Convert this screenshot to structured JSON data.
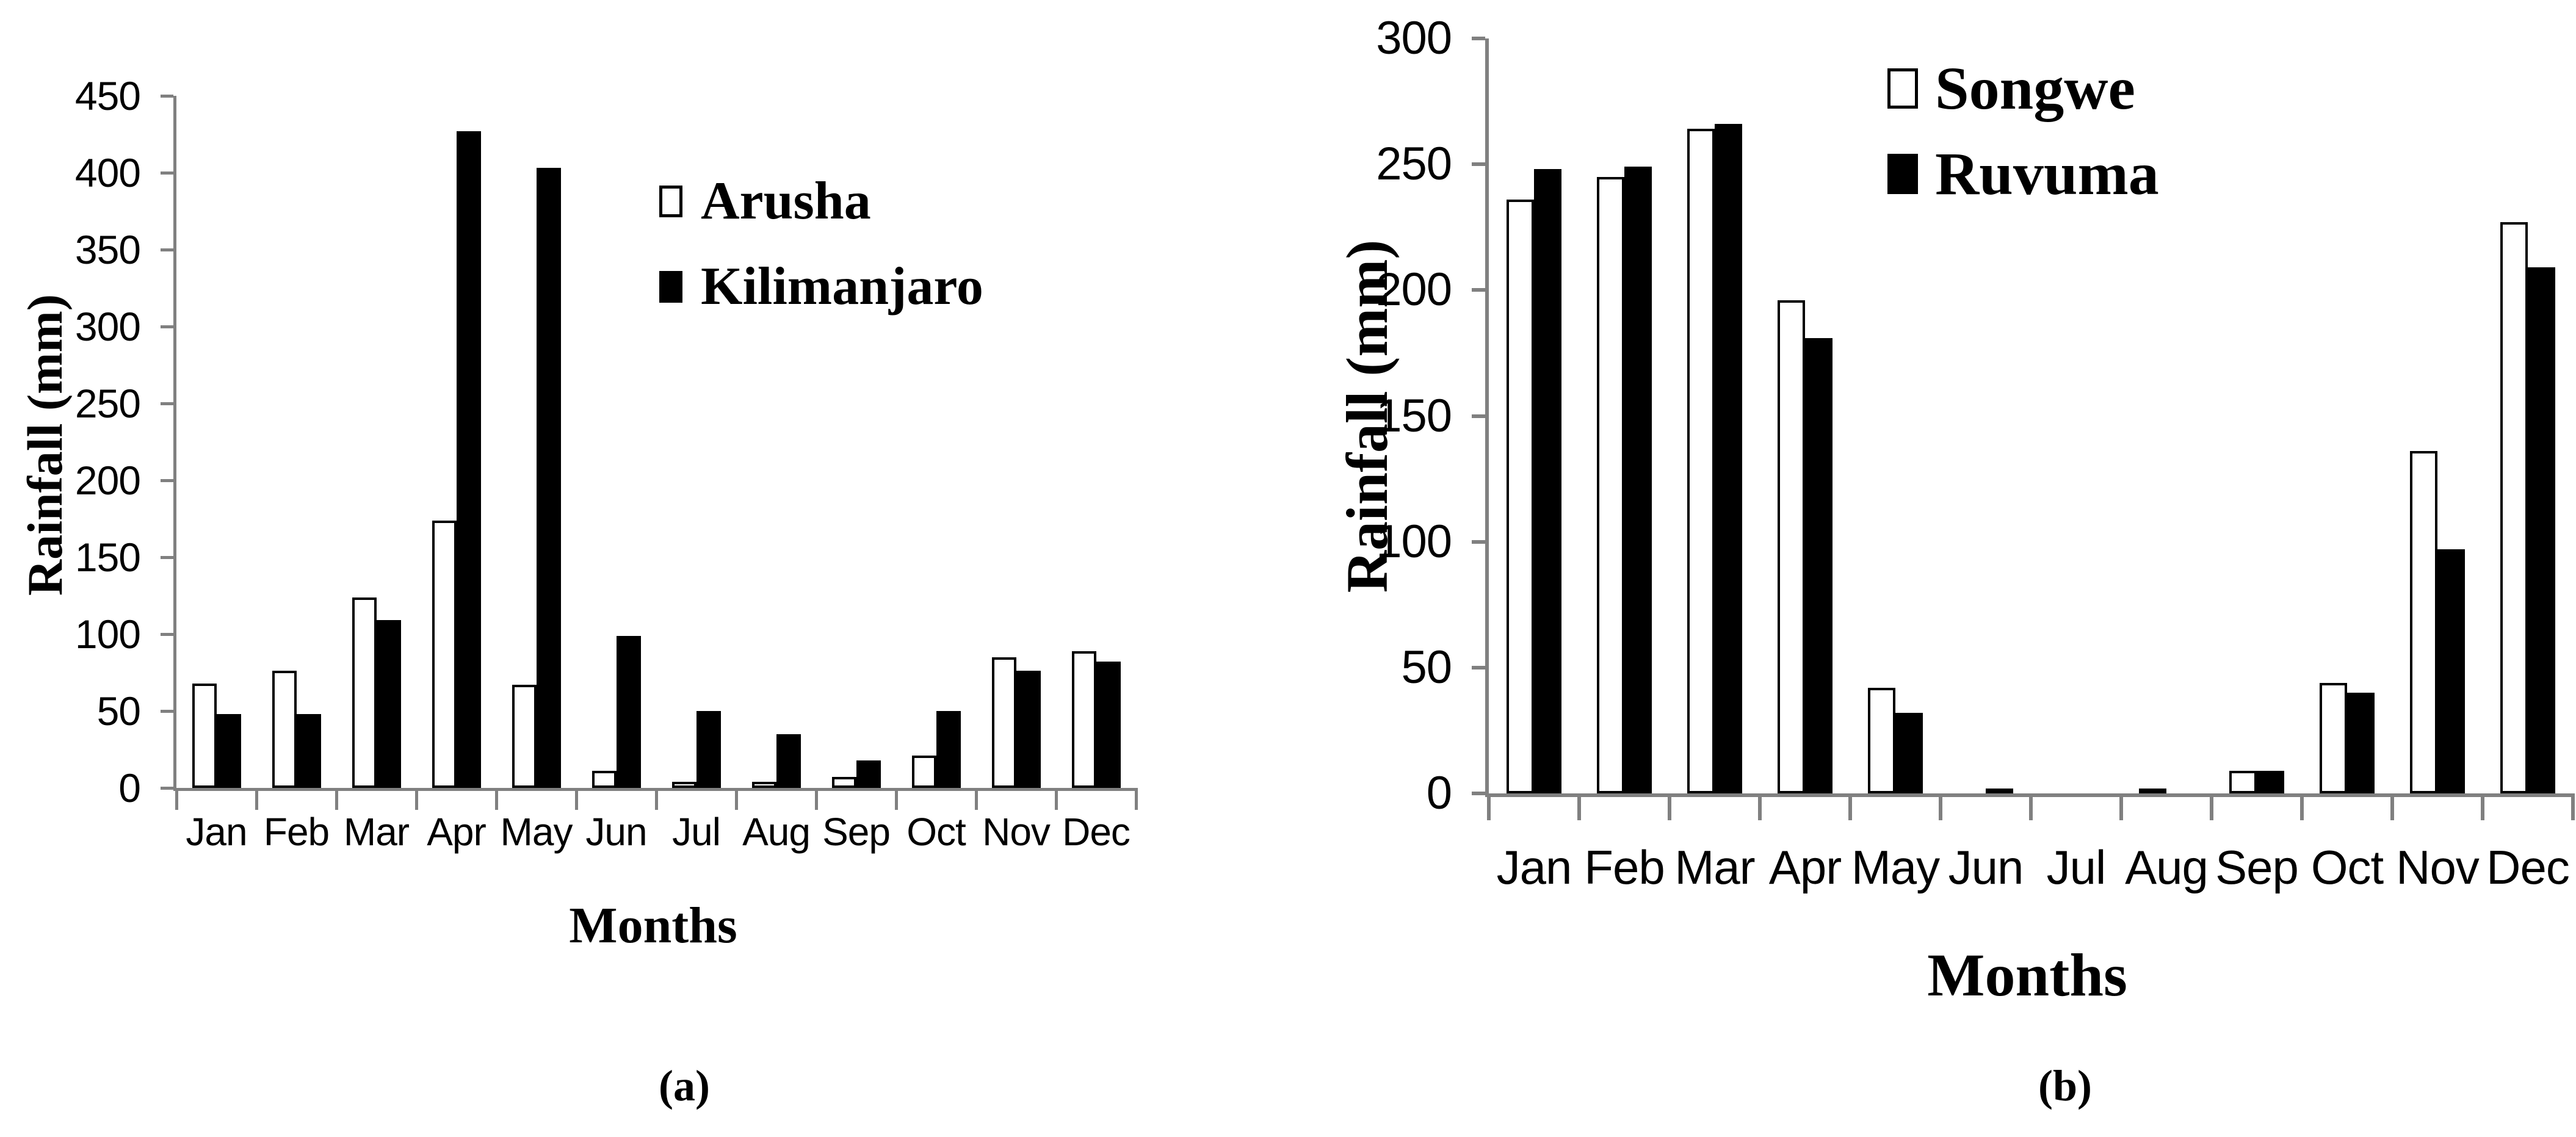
{
  "figure": {
    "background": "#ffffff",
    "panel_count": 2
  },
  "colors": {
    "axis": "#808080",
    "text": "#000000",
    "bar_open_fill": "#ffffff",
    "bar_open_border": "#000000",
    "bar_solid_fill": "#000000"
  },
  "chart_data": [
    {
      "panel": "(a)",
      "type": "bar",
      "title": "",
      "xlabel": "Months",
      "ylabel": "Rainfall (mm)",
      "ylim": [
        0,
        450
      ],
      "ytick_step": 50,
      "ytick_labels": [
        "450",
        "400",
        "350",
        "300",
        "250",
        "200",
        "150",
        "100",
        "50",
        "0"
      ],
      "grid": false,
      "legend_position": "upper-right-inside",
      "categories": [
        "Jan",
        "Feb",
        "Mar",
        "Apr",
        "May",
        "Jun",
        "Jul",
        "Aug",
        "Sep",
        "Oct",
        "Nov",
        "Dec"
      ],
      "series": [
        {
          "name": "Arusha",
          "style": "open",
          "fill": "#ffffff",
          "border": "#000000",
          "values": [
            68,
            76,
            124,
            174,
            67,
            11,
            4,
            4,
            7,
            21,
            85,
            89
          ]
        },
        {
          "name": "Kilimanjaro",
          "style": "solid",
          "fill": "#000000",
          "values": [
            48,
            48,
            109,
            427,
            403,
            99,
            50,
            35,
            18,
            50,
            76,
            82
          ]
        }
      ]
    },
    {
      "panel": "(b)",
      "type": "bar",
      "title": "",
      "xlabel": "Months",
      "ylabel": "Rainfall (mm)",
      "ylim": [
        0,
        300
      ],
      "ytick_step": 50,
      "ytick_labels": [
        "300",
        "250",
        "200",
        "150",
        "100",
        "50",
        "0"
      ],
      "grid": false,
      "legend_position": "upper-right-inside",
      "categories": [
        "Jan",
        "Feb",
        "Mar",
        "Apr",
        "May",
        "Jun",
        "Jul",
        "Aug",
        "Sep",
        "Oct",
        "Nov",
        "Dec"
      ],
      "series": [
        {
          "name": "Songwe",
          "style": "open",
          "fill": "#ffffff",
          "border": "#000000",
          "values": [
            236,
            245,
            264,
            196,
            42,
            0,
            0,
            2,
            9,
            44,
            136,
            227
          ]
        },
        {
          "name": "Ruvuma",
          "style": "solid",
          "fill": "#000000",
          "values": [
            248,
            249,
            266,
            181,
            32,
            2,
            0,
            0,
            9,
            40,
            97,
            209
          ]
        }
      ]
    }
  ]
}
